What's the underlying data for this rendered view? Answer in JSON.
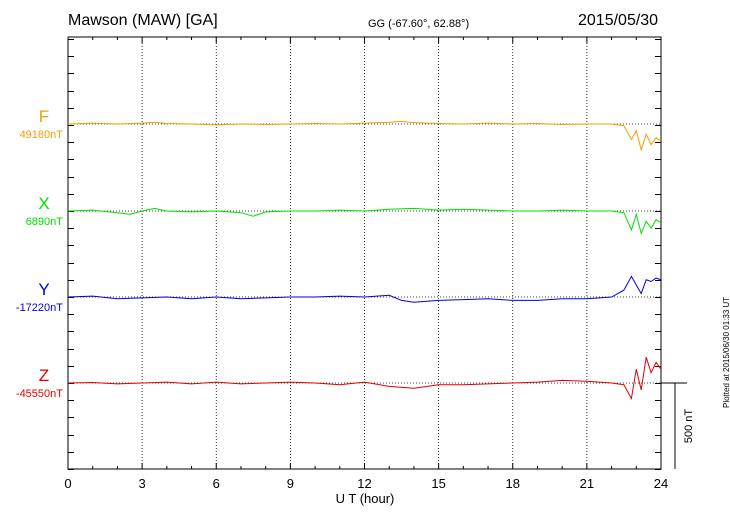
{
  "header": {
    "title": "Mawson (MAW)  [GA]",
    "coords": "GG (-67.60°,  62.88°)",
    "date": "2015/05/30",
    "plotted": "Plotted at 2015/06/30 01:33 UT"
  },
  "colors": {
    "F": "#f0a000",
    "X": "#00e000",
    "Y": "#0000e0",
    "Z": "#e00000"
  },
  "chart_data": {
    "type": "line",
    "xlabel": "U T (hour)",
    "xlim": [
      0,
      24
    ],
    "xticks": [
      "0",
      "3",
      "6",
      "9",
      "12",
      "15",
      "18",
      "21",
      "24"
    ],
    "scale_label": "500 nT",
    "scale_nT": 500,
    "series": [
      {
        "name": "F",
        "base": "49180nT",
        "color": "#f0a000",
        "x": [
          0,
          1,
          2,
          3,
          3.5,
          4,
          5,
          6,
          7,
          8,
          9,
          10,
          11,
          12,
          13,
          13.5,
          14,
          15,
          16,
          17,
          18,
          19,
          20,
          21,
          22,
          22.5,
          22.8,
          23.0,
          23.2,
          23.4,
          23.6,
          23.8,
          24
        ],
        "y": [
          0,
          5,
          0,
          5,
          10,
          3,
          0,
          -5,
          0,
          -3,
          0,
          3,
          0,
          5,
          10,
          15,
          8,
          3,
          0,
          5,
          0,
          3,
          -3,
          0,
          0,
          -10,
          -90,
          -40,
          -150,
          -60,
          -120,
          -80,
          -100
        ]
      },
      {
        "name": "X",
        "base": "6890nT",
        "color": "#00e000",
        "x": [
          0,
          1,
          2,
          2.5,
          3,
          3.5,
          4,
          5,
          6,
          7,
          7.5,
          8,
          9,
          10,
          11,
          12,
          13,
          14,
          15,
          16,
          17,
          18,
          19,
          20,
          21,
          22,
          22.5,
          22.8,
          23.0,
          23.2,
          23.4,
          23.6,
          23.8,
          24
        ],
        "y": [
          0,
          5,
          -10,
          -20,
          0,
          15,
          0,
          -5,
          0,
          -10,
          -30,
          -5,
          0,
          0,
          5,
          0,
          10,
          15,
          5,
          10,
          5,
          0,
          0,
          5,
          0,
          0,
          -10,
          -110,
          -20,
          -130,
          -60,
          -100,
          -50,
          -70
        ]
      },
      {
        "name": "Y",
        "base": "-17220nT",
        "color": "#0000e0",
        "x": [
          0,
          1,
          2,
          3,
          4,
          5,
          6,
          7,
          8,
          9,
          10,
          11,
          12,
          13,
          13.5,
          14,
          15,
          16,
          17,
          18,
          19,
          20,
          21,
          22,
          22.5,
          22.8,
          23.0,
          23.2,
          23.4,
          23.6,
          23.8,
          24
        ],
        "y": [
          0,
          5,
          -10,
          -5,
          0,
          -10,
          0,
          -10,
          -5,
          0,
          0,
          5,
          0,
          10,
          -20,
          -30,
          -20,
          -15,
          -10,
          -20,
          -20,
          -10,
          -10,
          0,
          40,
          120,
          70,
          20,
          100,
          90,
          110,
          100
        ]
      },
      {
        "name": "Z",
        "base": "-45550nT",
        "color": "#e00000",
        "x": [
          0,
          1,
          2,
          3,
          4,
          5,
          6,
          7,
          8,
          9,
          10,
          11,
          12,
          13,
          14,
          15,
          16,
          17,
          18,
          19,
          20,
          21,
          22,
          22.5,
          22.8,
          23.0,
          23.2,
          23.4,
          23.6,
          23.8,
          24
        ],
        "y": [
          0,
          3,
          -5,
          0,
          5,
          -5,
          5,
          -5,
          0,
          5,
          0,
          -10,
          5,
          -20,
          -30,
          -10,
          -10,
          -5,
          0,
          5,
          15,
          10,
          0,
          -10,
          -90,
          80,
          -40,
          150,
          60,
          120,
          80
        ]
      }
    ]
  }
}
